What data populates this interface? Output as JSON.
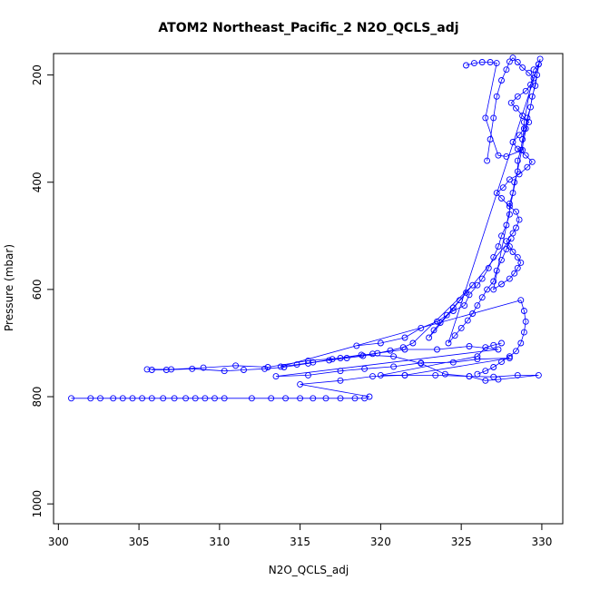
{
  "chart_data": {
    "type": "scatter",
    "title": "ATOM2 Northeast_Pacific_2 N2O_QCLS_adj",
    "xlabel": "N2O_QCLS_adj",
    "ylabel": "Pressure (mbar)",
    "xlim": [
      299.7,
      331.3
    ],
    "ylim": [
      1037,
      160
    ],
    "y_reversed": true,
    "x_ticks": [
      300,
      305,
      310,
      315,
      320,
      325,
      330
    ],
    "y_ticks": [
      200,
      400,
      600,
      800,
      1000
    ],
    "grid": false,
    "legend": "none",
    "color": "#0000ff",
    "marker": "open-circle",
    "series": [
      {
        "points": [
          [
            300.8,
            803
          ],
          [
            302.0,
            803
          ],
          [
            302.6,
            803
          ],
          [
            303.4,
            803
          ],
          [
            304.0,
            803
          ],
          [
            304.6,
            803
          ],
          [
            305.2,
            803
          ],
          [
            305.8,
            803
          ],
          [
            306.5,
            803
          ],
          [
            307.2,
            803
          ],
          [
            307.9,
            803
          ],
          [
            308.5,
            803
          ],
          [
            309.1,
            803
          ],
          [
            309.7,
            803
          ],
          [
            310.3,
            803
          ],
          [
            312.0,
            803
          ],
          [
            313.2,
            803
          ],
          [
            314.1,
            803
          ],
          [
            315.0,
            803
          ],
          [
            315.8,
            803
          ],
          [
            316.6,
            803
          ],
          [
            317.5,
            803
          ],
          [
            318.4,
            803
          ],
          [
            319.0,
            803
          ],
          [
            319.3,
            800
          ],
          [
            315.0,
            777
          ],
          [
            317.5,
            770
          ],
          [
            319.5,
            762
          ],
          [
            321.5,
            760
          ],
          [
            323.4,
            760
          ],
          [
            325.5,
            762
          ],
          [
            327.0,
            763
          ],
          [
            328.5,
            760
          ],
          [
            329.8,
            760
          ],
          [
            327.3,
            768
          ],
          [
            326.5,
            770
          ],
          [
            325.5,
            762
          ],
          [
            324.0,
            758
          ],
          [
            322.5,
            738
          ],
          [
            320.8,
            725
          ],
          [
            318.8,
            722
          ],
          [
            317.0,
            730
          ],
          [
            315.5,
            738
          ],
          [
            314.0,
            745
          ],
          [
            312.8,
            748
          ],
          [
            311.5,
            750
          ],
          [
            310.3,
            752
          ],
          [
            308.3,
            748
          ],
          [
            306.7,
            750
          ],
          [
            305.8,
            750
          ]
        ]
      },
      {
        "points": [
          [
            305.5,
            749
          ],
          [
            307.0,
            749
          ],
          [
            309.0,
            746
          ],
          [
            311.0,
            742
          ],
          [
            313.0,
            745
          ],
          [
            315.5,
            733
          ],
          [
            317.5,
            728
          ],
          [
            319.5,
            720
          ],
          [
            321.5,
            712
          ],
          [
            323.5,
            712
          ],
          [
            325.5,
            706
          ],
          [
            327.3,
            712
          ],
          [
            313.5,
            762
          ],
          [
            315.5,
            760
          ],
          [
            317.5,
            752
          ],
          [
            319.0,
            748
          ],
          [
            320.8,
            744
          ],
          [
            322.5,
            737
          ],
          [
            324.5,
            736
          ],
          [
            326.0,
            730
          ],
          [
            328.0,
            728
          ],
          [
            321.5,
            760
          ],
          [
            320.0,
            760
          ],
          [
            326.0,
            725
          ],
          [
            326.5,
            708
          ],
          [
            327.0,
            704
          ],
          [
            327.5,
            700
          ]
        ]
      },
      {
        "points": [
          [
            318.5,
            705
          ],
          [
            320.0,
            700
          ],
          [
            321.5,
            690
          ],
          [
            322.5,
            672
          ],
          [
            323.5,
            660
          ],
          [
            324.5,
            640
          ],
          [
            325.2,
            630
          ],
          [
            325.5,
            610
          ],
          [
            326.0,
            592
          ],
          [
            326.3,
            580
          ],
          [
            326.7,
            560
          ],
          [
            327.0,
            540
          ],
          [
            327.3,
            520
          ],
          [
            327.5,
            500
          ],
          [
            327.8,
            480
          ],
          [
            328.0,
            460
          ],
          [
            328.0,
            440
          ],
          [
            328.2,
            420
          ],
          [
            328.3,
            400
          ],
          [
            328.5,
            380
          ],
          [
            328.5,
            360
          ],
          [
            328.7,
            340
          ],
          [
            328.8,
            320
          ],
          [
            329.0,
            300
          ],
          [
            329.1,
            280
          ],
          [
            329.3,
            260
          ],
          [
            329.4,
            240
          ],
          [
            329.6,
            220
          ],
          [
            329.7,
            200
          ],
          [
            329.8,
            180
          ],
          [
            329.9,
            170
          ],
          [
            327.0,
            600
          ],
          [
            327.5,
            590
          ],
          [
            328.0,
            580
          ],
          [
            328.3,
            570
          ],
          [
            328.5,
            560
          ],
          [
            328.7,
            550
          ],
          [
            328.5,
            540
          ],
          [
            328.2,
            530
          ],
          [
            328.0,
            520
          ],
          [
            327.8,
            510
          ],
          [
            328.2,
            495
          ],
          [
            328.4,
            485
          ],
          [
            328.6,
            470
          ],
          [
            328.4,
            455
          ],
          [
            328.0,
            445
          ],
          [
            327.5,
            430
          ],
          [
            327.2,
            420
          ],
          [
            327.6,
            410
          ],
          [
            328.0,
            395
          ],
          [
            328.6,
            385
          ],
          [
            329.1,
            372
          ],
          [
            329.4,
            362
          ],
          [
            329.0,
            350
          ],
          [
            328.5,
            338
          ],
          [
            328.2,
            325
          ],
          [
            328.6,
            312
          ],
          [
            328.9,
            300
          ],
          [
            329.2,
            288
          ],
          [
            328.8,
            276
          ],
          [
            328.4,
            262
          ],
          [
            328.1,
            252
          ],
          [
            328.5,
            240
          ],
          [
            329.0,
            230
          ],
          [
            329.3,
            218
          ],
          [
            329.5,
            206
          ],
          [
            329.2,
            196
          ],
          [
            328.8,
            186
          ],
          [
            328.5,
            176
          ],
          [
            328.2,
            168
          ],
          [
            328.0,
            175
          ],
          [
            327.8,
            190
          ],
          [
            327.5,
            210
          ],
          [
            327.2,
            240
          ],
          [
            327.0,
            280
          ],
          [
            326.8,
            320
          ],
          [
            326.6,
            360
          ]
        ]
      },
      {
        "points": [
          [
            325.3,
            182
          ],
          [
            325.8,
            178
          ],
          [
            326.3,
            176
          ],
          [
            326.8,
            176
          ],
          [
            327.2,
            178
          ],
          [
            326.5,
            280
          ],
          [
            327.3,
            350
          ],
          [
            327.8,
            352
          ],
          [
            328.8,
            340
          ],
          [
            328.9,
            288
          ],
          [
            329.5,
            190
          ],
          [
            329.8,
            180
          ],
          [
            324.2,
            700
          ],
          [
            324.6,
            686
          ],
          [
            325.0,
            672
          ],
          [
            325.4,
            658
          ],
          [
            325.7,
            645
          ],
          [
            326.0,
            630
          ],
          [
            326.3,
            615
          ],
          [
            326.6,
            600
          ],
          [
            327.0,
            585
          ],
          [
            327.2,
            565
          ],
          [
            327.5,
            545
          ],
          [
            327.8,
            525
          ],
          [
            328.1,
            505
          ],
          [
            323.0,
            690
          ],
          [
            323.3,
            676
          ],
          [
            323.7,
            662
          ],
          [
            324.1,
            648
          ],
          [
            324.5,
            634
          ],
          [
            324.9,
            620
          ],
          [
            325.3,
            606
          ],
          [
            325.7,
            592
          ],
          [
            322.0,
            700
          ],
          [
            321.4,
            708
          ],
          [
            320.6,
            714
          ],
          [
            319.8,
            719
          ],
          [
            318.9,
            724
          ],
          [
            317.9,
            728
          ],
          [
            316.8,
            732
          ],
          [
            315.8,
            736
          ],
          [
            314.8,
            740
          ],
          [
            313.8,
            744
          ],
          [
            328.7,
            620
          ],
          [
            328.9,
            640
          ],
          [
            329.0,
            660
          ],
          [
            328.9,
            680
          ],
          [
            328.7,
            700
          ],
          [
            328.4,
            715
          ],
          [
            328.0,
            725
          ],
          [
            327.5,
            735
          ],
          [
            327.0,
            745
          ],
          [
            326.5,
            752
          ],
          [
            326.0,
            758
          ]
        ]
      }
    ]
  }
}
